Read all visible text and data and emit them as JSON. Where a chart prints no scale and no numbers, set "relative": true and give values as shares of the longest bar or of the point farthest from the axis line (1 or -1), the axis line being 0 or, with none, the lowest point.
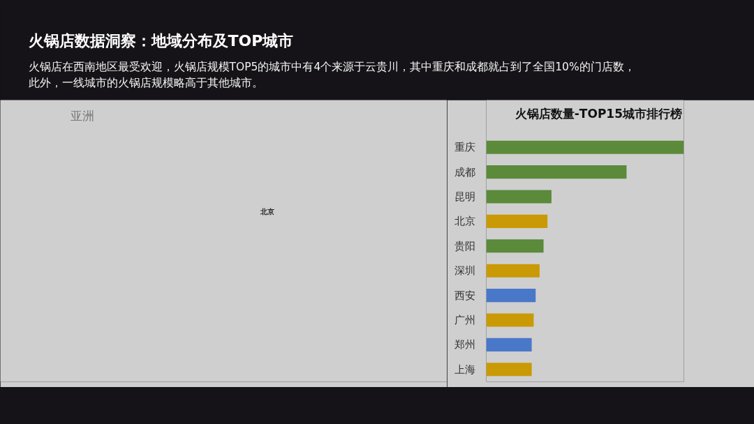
{
  "chart_data": {
    "type": "bar",
    "orientation": "horizontal",
    "relative": true,
    "title": "火锅店数据洞察：地域分布及TOP城市",
    "subtitle": "火锅店在西南地区最受欢迎，火锅店规模TOP5的城市中有4个来源于云贵川，其中重庆和成都就占到了全国10%的门店数，此外，一线城市的火锅店规模略高于其他城市。",
    "annotations": [
      "火锅店数量-TOP15城市排行榜",
      "亚洲",
      "北京"
    ],
    "categories": [
      "重庆",
      "成都",
      "昆明",
      "北京",
      "贵阳",
      "深圳",
      "西安",
      "广州",
      "郑州",
      "上海"
    ],
    "values": [
      1,
      0.71,
      0.33,
      0.31,
      0.29,
      0.27,
      0.25,
      0.24,
      0.23,
      0.23
    ],
    "colors": [
      "#5b8a3a",
      "#5b8a3a",
      "#5b8a3a",
      "#c99a06",
      "#5b8a3a",
      "#c99a06",
      "#4a78c8",
      "#c99a06",
      "#4a78c8",
      "#c99a06"
    ]
  }
}
